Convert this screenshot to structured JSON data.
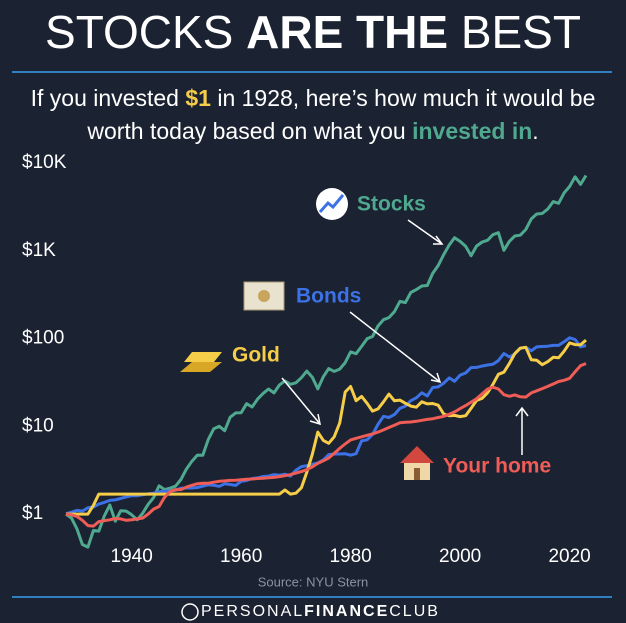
{
  "chart_data": {
    "type": "line",
    "title": [
      "STOCKS",
      "ARE THE",
      "BEST"
    ],
    "subtitle": [
      [
        "If you invested ",
        "$1",
        " in 1928, here’s how much it would be"
      ],
      [
        "worth today based on what you ",
        "invested in",
        "."
      ]
    ],
    "source": "Source: NYU Stern",
    "brand": [
      "PERSONAL",
      "FINANCE",
      "CLUB"
    ],
    "log_scale": true,
    "grid": false,
    "xlim": [
      1928,
      2023
    ],
    "xticks": [
      1940,
      1960,
      1980,
      2000,
      2020
    ],
    "ylim": [
      0.4,
      10000
    ],
    "yticks": [
      {
        "value": 1,
        "label": "$1"
      },
      {
        "value": 10,
        "label": "$10"
      },
      {
        "value": 100,
        "label": "$100"
      },
      {
        "value": 1000,
        "label": "$1K"
      },
      {
        "value": 10000,
        "label": "$10K"
      }
    ],
    "x": [
      1928,
      1929,
      1930,
      1931,
      1932,
      1933,
      1934,
      1935,
      1936,
      1937,
      1938,
      1939,
      1940,
      1941,
      1942,
      1943,
      1944,
      1945,
      1946,
      1947,
      1948,
      1949,
      1950,
      1951,
      1952,
      1953,
      1954,
      1955,
      1956,
      1957,
      1958,
      1959,
      1960,
      1961,
      1962,
      1963,
      1964,
      1965,
      1966,
      1967,
      1968,
      1969,
      1970,
      1971,
      1972,
      1973,
      1974,
      1975,
      1976,
      1977,
      1978,
      1979,
      1980,
      1981,
      1982,
      1983,
      1984,
      1985,
      1986,
      1987,
      1988,
      1989,
      1990,
      1991,
      1992,
      1993,
      1994,
      1995,
      1996,
      1997,
      1998,
      1999,
      2000,
      2001,
      2002,
      2003,
      2004,
      2005,
      2006,
      2007,
      2008,
      2009,
      2010,
      2011,
      2012,
      2013,
      2014,
      2015,
      2016,
      2017,
      2018,
      2019,
      2020,
      2021,
      2022,
      2023
    ],
    "series": [
      {
        "name": "Stocks",
        "color": "#4fa98f",
        "values": [
          1,
          0.9,
          0.68,
          0.45,
          0.42,
          0.65,
          0.64,
          0.95,
          1.27,
          0.83,
          1.09,
          1.08,
          0.98,
          0.86,
          1.02,
          1.29,
          1.54,
          2.1,
          1.9,
          1.97,
          2.08,
          2.48,
          3.25,
          4.0,
          4.7,
          4.67,
          7.1,
          9.4,
          10.0,
          8.9,
          12.7,
          14.2,
          14.3,
          18.1,
          16.6,
          20.4,
          23.7,
          26.6,
          24.0,
          29.6,
          32.9,
          30.1,
          31.3,
          35.8,
          42.6,
          36.3,
          26.7,
          36.6,
          45.4,
          42.2,
          44.9,
          53.2,
          70.5,
          67.1,
          81.4,
          99.5,
          105.6,
          139,
          164,
          173,
          202,
          265,
          257,
          335,
          361,
          397,
          402,
          552,
          679,
          905,
          1164,
          1409,
          1280,
          1128,
          879,
          1131,
          1254,
          1316,
          1524,
          1608,
          1013,
          1281,
          1473,
          1504,
          1745,
          2310,
          2625,
          2661,
          2980,
          3630,
          3471,
          4565,
          5405,
          6956,
          5697,
          7198
        ]
      },
      {
        "name": "Bonds",
        "color": "#3d72e6",
        "values": [
          1.01,
          1.05,
          1.1,
          1.08,
          1.18,
          1.2,
          1.3,
          1.36,
          1.43,
          1.45,
          1.51,
          1.57,
          1.62,
          1.62,
          1.66,
          1.7,
          1.73,
          1.8,
          1.82,
          1.83,
          1.86,
          1.97,
          1.98,
          1.98,
          2.01,
          2.08,
          2.16,
          2.13,
          2.07,
          2.21,
          2.17,
          2.12,
          2.36,
          2.41,
          2.54,
          2.58,
          2.68,
          2.71,
          2.82,
          2.77,
          2.85,
          2.71,
          3.16,
          3.47,
          3.56,
          3.69,
          3.83,
          4.13,
          4.76,
          4.83,
          4.84,
          4.87,
          4.68,
          4.87,
          6.82,
          7.02,
          8.07,
          10.5,
          13.0,
          12.6,
          13.6,
          16.0,
          17.0,
          19.6,
          21.1,
          24.1,
          22.2,
          27.7,
          28.1,
          31.0,
          35.6,
          32.6,
          38.3,
          40.5,
          46.7,
          46.9,
          48.5,
          49.9,
          50.9,
          56.1,
          67.6,
          61.6,
          66.8,
          77.2,
          79.5,
          72.4,
          80.2,
          81.2,
          81.8,
          83.6,
          83.6,
          91.7,
          102,
          97.6,
          80.5,
          83.4
        ]
      },
      {
        "name": "Gold",
        "color": "#f6cd48",
        "values": [
          1,
          1,
          1,
          1,
          1,
          1.26,
          1.69,
          1.69,
          1.69,
          1.69,
          1.69,
          1.69,
          1.69,
          1.69,
          1.69,
          1.69,
          1.69,
          1.69,
          1.69,
          1.69,
          1.69,
          1.69,
          1.69,
          1.69,
          1.69,
          1.69,
          1.69,
          1.69,
          1.69,
          1.69,
          1.69,
          1.69,
          1.69,
          1.69,
          1.69,
          1.69,
          1.69,
          1.69,
          1.69,
          1.69,
          1.88,
          1.69,
          1.73,
          2.0,
          3.0,
          4.8,
          8.6,
          6.9,
          6.4,
          7.6,
          10.9,
          24.6,
          28.4,
          19.6,
          21.9,
          18.3,
          14.9,
          15.8,
          19.0,
          23.3,
          19.5,
          19.9,
          18.3,
          17.0,
          16.5,
          19.0,
          18.0,
          18.2,
          17.4,
          13.8,
          13.2,
          13.3,
          12.9,
          13.2,
          16.1,
          19.7,
          20.8,
          24.1,
          30.0,
          39.1,
          41.3,
          52.1,
          67.3,
          77.8,
          79.4,
          57.3,
          56.6,
          50.3,
          54.5,
          61.1,
          60.3,
          71.8,
          89.3,
          85.3,
          84.9,
          96
        ]
      },
      {
        "name": "Your home",
        "color": "#ef5d56",
        "values": [
          1,
          0.98,
          0.94,
          0.85,
          0.74,
          0.73,
          0.82,
          0.84,
          0.86,
          0.89,
          0.88,
          0.85,
          0.86,
          0.88,
          0.9,
          1.0,
          1.14,
          1.22,
          1.55,
          1.81,
          1.9,
          1.9,
          2.03,
          2.13,
          2.22,
          2.24,
          2.25,
          2.31,
          2.36,
          2.39,
          2.42,
          2.43,
          2.46,
          2.49,
          2.51,
          2.54,
          2.56,
          2.59,
          2.62,
          2.67,
          2.74,
          2.82,
          2.94,
          3.05,
          3.2,
          3.45,
          3.78,
          4.05,
          4.35,
          4.92,
          5.6,
          6.3,
          7.0,
          7.3,
          7.6,
          7.9,
          8.2,
          8.6,
          9.1,
          9.7,
          10.3,
          11.0,
          11.1,
          11.2,
          11.4,
          11.7,
          12.0,
          12.2,
          12.6,
          13.0,
          13.7,
          14.6,
          15.9,
          17.2,
          18.8,
          20.6,
          23.4,
          26.5,
          27.9,
          26.6,
          22.9,
          22.0,
          22.8,
          21.7,
          21.5,
          24.0,
          25.4,
          26.9,
          28.5,
          30.3,
          32.4,
          33.4,
          35.2,
          41.8,
          49.0,
          52
        ]
      }
    ]
  }
}
